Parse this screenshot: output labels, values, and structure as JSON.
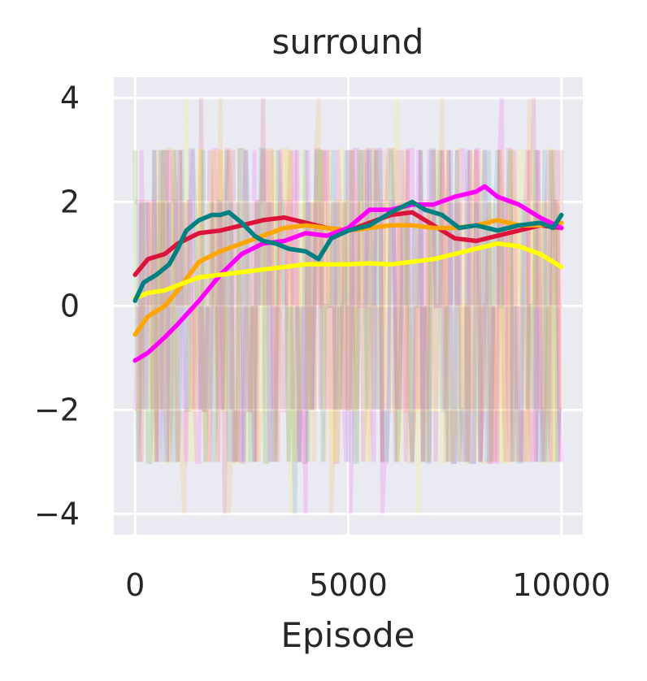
{
  "chart_data": {
    "type": "line",
    "title": "surround",
    "xlabel": "Episode",
    "ylabel": "",
    "xlim": [
      -500,
      10500
    ],
    "ylim": [
      -4.4,
      4.4
    ],
    "xticks": [
      0,
      5000,
      10000
    ],
    "xtick_labels": [
      "0",
      "5000",
      "10000"
    ],
    "yticks": [
      -4,
      -2,
      0,
      2,
      4
    ],
    "ytick_labels": [
      "−4",
      "−2",
      "0",
      "2",
      "4"
    ],
    "grid": true,
    "legend": "none",
    "colors": {
      "background": "#eaeaf2",
      "grid": "#ffffff",
      "text": "#262626"
    },
    "series": [
      {
        "color": "#dc143c",
        "smoothed": {
          "x": [
            0,
            300,
            700,
            1000,
            1500,
            2000,
            2500,
            3000,
            3500,
            4000,
            4500,
            5000,
            5500,
            6000,
            6500,
            7000,
            7500,
            8000,
            8500,
            9000,
            9500,
            10000
          ],
          "y": [
            0.6,
            0.9,
            1.0,
            1.2,
            1.4,
            1.45,
            1.55,
            1.65,
            1.7,
            1.6,
            1.5,
            1.45,
            1.6,
            1.75,
            1.8,
            1.55,
            1.3,
            1.25,
            1.35,
            1.45,
            1.55,
            1.5
          ]
        }
      },
      {
        "color": "#ffa500",
        "smoothed": {
          "x": [
            0,
            300,
            700,
            1000,
            1500,
            2000,
            2500,
            3000,
            3500,
            4000,
            4500,
            5000,
            5500,
            6000,
            6500,
            7000,
            7500,
            8000,
            8500,
            9000,
            9500,
            10000
          ],
          "y": [
            -0.55,
            -0.2,
            0.0,
            0.3,
            0.85,
            1.05,
            1.2,
            1.35,
            1.5,
            1.55,
            1.5,
            1.45,
            1.5,
            1.55,
            1.55,
            1.5,
            1.5,
            1.55,
            1.65,
            1.55,
            1.55,
            1.6
          ]
        }
      },
      {
        "color": "#ff00ff",
        "smoothed": {
          "x": [
            0,
            300,
            700,
            1000,
            1500,
            2000,
            2500,
            3000,
            3500,
            4000,
            4500,
            5000,
            5500,
            6000,
            6500,
            7000,
            7500,
            8000,
            8200,
            8500,
            9000,
            9500,
            10000
          ],
          "y": [
            -1.05,
            -0.9,
            -0.6,
            -0.35,
            0.1,
            0.6,
            1.0,
            1.2,
            1.25,
            1.4,
            1.35,
            1.5,
            1.85,
            1.85,
            1.95,
            1.95,
            2.1,
            2.2,
            2.3,
            2.1,
            1.95,
            1.7,
            1.5
          ]
        }
      },
      {
        "color": "#ffff00",
        "smoothed": {
          "x": [
            0,
            300,
            700,
            1000,
            1500,
            2000,
            2500,
            3000,
            3500,
            4000,
            4500,
            5000,
            5500,
            6000,
            6500,
            7000,
            7500,
            8000,
            8500,
            9000,
            9500,
            10000
          ],
          "y": [
            0.15,
            0.25,
            0.3,
            0.4,
            0.55,
            0.6,
            0.65,
            0.7,
            0.75,
            0.8,
            0.8,
            0.8,
            0.82,
            0.8,
            0.85,
            0.9,
            1.0,
            1.1,
            1.2,
            1.15,
            1.0,
            0.75
          ]
        }
      },
      {
        "color": "#008080",
        "smoothed": {
          "x": [
            0,
            200,
            500,
            800,
            1000,
            1200,
            1500,
            1800,
            2000,
            2200,
            2500,
            2800,
            3000,
            3300,
            3600,
            4000,
            4300,
            4600,
            5000,
            5500,
            6000,
            6500,
            6800,
            7200,
            7600,
            8000,
            8500,
            9000,
            9500,
            9800,
            10000
          ],
          "y": [
            0.1,
            0.45,
            0.6,
            0.8,
            1.1,
            1.45,
            1.65,
            1.75,
            1.75,
            1.8,
            1.6,
            1.35,
            1.25,
            1.2,
            1.1,
            1.05,
            0.9,
            1.3,
            1.45,
            1.55,
            1.8,
            2.0,
            1.85,
            1.75,
            1.5,
            1.55,
            1.45,
            1.55,
            1.6,
            1.5,
            1.75
          ]
        }
      }
    ]
  }
}
